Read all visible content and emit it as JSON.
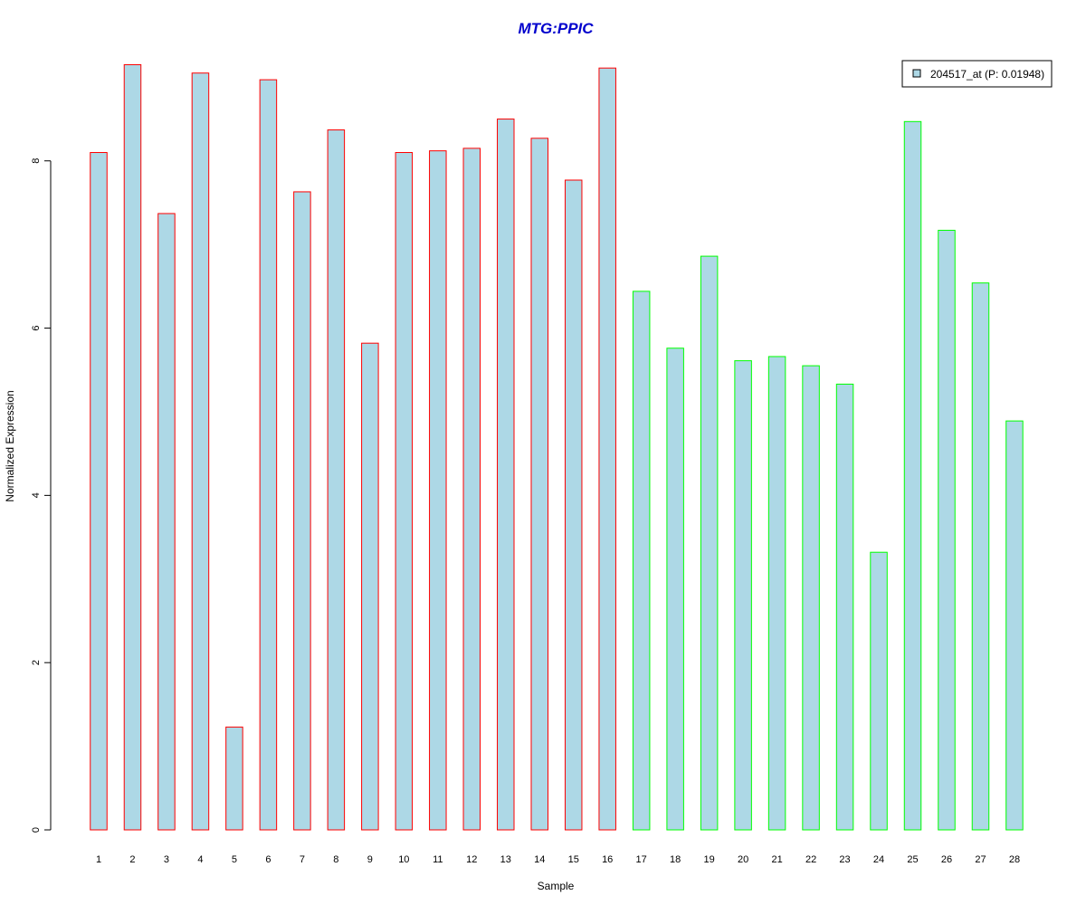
{
  "chart_data": {
    "type": "bar",
    "title": "MTG:PPIC",
    "xlabel": "Sample",
    "ylabel": "Normalized Expression",
    "categories": [
      "1",
      "2",
      "3",
      "4",
      "5",
      "6",
      "7",
      "8",
      "9",
      "10",
      "11",
      "12",
      "13",
      "14",
      "15",
      "16",
      "17",
      "18",
      "19",
      "20",
      "21",
      "22",
      "23",
      "24",
      "25",
      "26",
      "27",
      "28"
    ],
    "series": [
      {
        "name": "204517_at (P: 0.01948)",
        "values": [
          8.1,
          9.15,
          7.37,
          9.05,
          1.23,
          8.97,
          7.63,
          8.37,
          5.82,
          8.1,
          8.12,
          8.15,
          8.5,
          8.27,
          7.77,
          9.11,
          6.44,
          5.76,
          6.86,
          5.61,
          5.66,
          5.55,
          5.33,
          3.32,
          8.47,
          7.17,
          6.54,
          4.89
        ]
      }
    ],
    "group_edge_colors": [
      "#ff0000",
      "#ff0000",
      "#ff0000",
      "#ff0000",
      "#ff0000",
      "#ff0000",
      "#ff0000",
      "#ff0000",
      "#ff0000",
      "#ff0000",
      "#ff0000",
      "#ff0000",
      "#ff0000",
      "#ff0000",
      "#ff0000",
      "#ff0000",
      "#00ff00",
      "#00ff00",
      "#00ff00",
      "#00ff00",
      "#00ff00",
      "#00ff00",
      "#00ff00",
      "#00ff00",
      "#00ff00",
      "#00ff00",
      "#00ff00",
      "#00ff00"
    ],
    "bar_fill_color": "#add8e6",
    "title_color": "#0000cd",
    "y_ticks": [
      0,
      2,
      4,
      6,
      8
    ],
    "ylim": [
      0,
      9.35
    ],
    "grid": false,
    "legend_position": "top-right"
  }
}
